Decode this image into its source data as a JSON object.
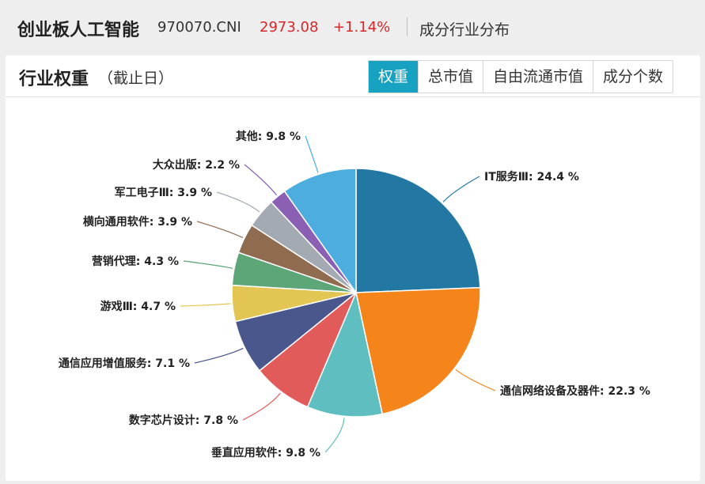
{
  "header": {
    "index_name": "创业板人工智能",
    "code": "970070.CNI",
    "price": "2973.08",
    "change": "+1.14%",
    "view_link": "成分行业分布"
  },
  "panel": {
    "title": "行业权重",
    "subtitle": "（截止日）",
    "tabs": [
      {
        "label": "权重",
        "active": true
      },
      {
        "label": "总市值",
        "active": false
      },
      {
        "label": "自由流通市值",
        "active": false
      },
      {
        "label": "成分个数",
        "active": false
      }
    ]
  },
  "chart_data": {
    "type": "pie",
    "unit": "%",
    "slices": [
      {
        "label": "IT服务Ⅲ",
        "value": 24.4,
        "color": "#2278a3"
      },
      {
        "label": "通信网络设备及器件",
        "value": 22.3,
        "color": "#f5841a"
      },
      {
        "label": "垂直应用软件",
        "value": 9.8,
        "color": "#5fbfc0"
      },
      {
        "label": "数字芯片设计",
        "value": 7.8,
        "color": "#e15b5b"
      },
      {
        "label": "通信应用增值服务",
        "value": 7.1,
        "color": "#4a578c"
      },
      {
        "label": "游戏Ⅲ",
        "value": 4.7,
        "color": "#e3c554"
      },
      {
        "label": "营销代理",
        "value": 4.3,
        "color": "#5ca678"
      },
      {
        "label": "横向通用软件",
        "value": 3.9,
        "color": "#8f6b50"
      },
      {
        "label": "军工电子Ⅲ",
        "value": 3.9,
        "color": "#a3aab2"
      },
      {
        "label": "大众出版",
        "value": 2.2,
        "color": "#8b5fb4"
      },
      {
        "label": "其他",
        "value": 9.8,
        "color": "#4cadde"
      }
    ]
  }
}
